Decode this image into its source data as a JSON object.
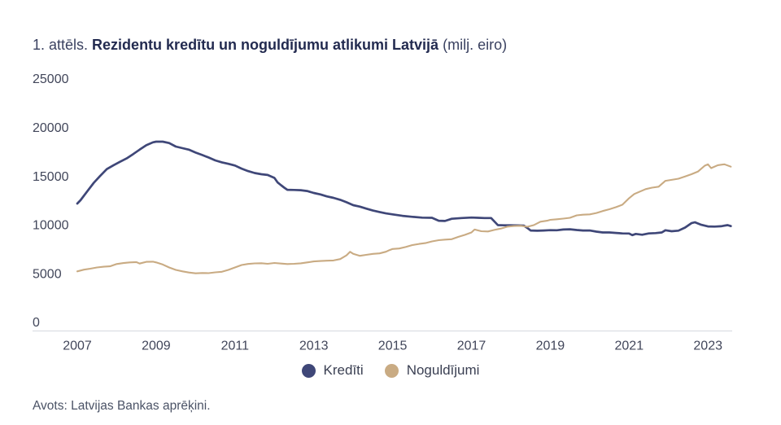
{
  "title": {
    "prefix": "1. attēls. ",
    "main": "Rezidentu kredītu un noguldījumu atlikumi Latvijā",
    "unit": " (milj. eiro)"
  },
  "footer": {
    "source": "Avots: Latvijas Bankas aprēķini."
  },
  "colors": {
    "credits_line": "#3f4778",
    "deposits_line": "#c9ab83",
    "axis_line": "#dcdee3",
    "axis_label_text": "#41465a",
    "title_regular": "#3a4160",
    "title_bold": "#232b50",
    "legend_text": "#3a3f52",
    "footer_text": "#4b5366"
  },
  "chart_data": {
    "type": "line",
    "title": "Rezidentu kredītu un noguldījumu atlikumi Latvijā (milj. eiro)",
    "xlabel": "",
    "ylabel": "",
    "x_ticks": [
      2007,
      2009,
      2011,
      2013,
      2015,
      2017,
      2019,
      2021,
      2023
    ],
    "y_ticks": [
      0,
      5000,
      10000,
      15000,
      20000,
      25000
    ],
    "xlim": [
      2006.9,
      2023.75
    ],
    "ylim": [
      0,
      25000
    ],
    "grid": false,
    "legend_position": "bottom",
    "series": [
      {
        "name": "Kredīti",
        "color": "#3f4778",
        "points": [
          [
            2007.0,
            12270
          ],
          [
            2007.08,
            12600
          ],
          [
            2007.25,
            13500
          ],
          [
            2007.42,
            14400
          ],
          [
            2007.58,
            15100
          ],
          [
            2007.75,
            15800
          ],
          [
            2007.92,
            16200
          ],
          [
            2008.08,
            16550
          ],
          [
            2008.25,
            16900
          ],
          [
            2008.42,
            17350
          ],
          [
            2008.58,
            17800
          ],
          [
            2008.75,
            18250
          ],
          [
            2008.92,
            18550
          ],
          [
            2009.0,
            18620
          ],
          [
            2009.17,
            18620
          ],
          [
            2009.33,
            18480
          ],
          [
            2009.5,
            18120
          ],
          [
            2009.67,
            17950
          ],
          [
            2009.83,
            17800
          ],
          [
            2010.0,
            17500
          ],
          [
            2010.17,
            17250
          ],
          [
            2010.33,
            17000
          ],
          [
            2010.5,
            16700
          ],
          [
            2010.67,
            16500
          ],
          [
            2010.83,
            16350
          ],
          [
            2011.0,
            16170
          ],
          [
            2011.17,
            15850
          ],
          [
            2011.33,
            15600
          ],
          [
            2011.5,
            15400
          ],
          [
            2011.67,
            15280
          ],
          [
            2011.83,
            15200
          ],
          [
            2012.0,
            14900
          ],
          [
            2012.08,
            14450
          ],
          [
            2012.17,
            14150
          ],
          [
            2012.25,
            13900
          ],
          [
            2012.33,
            13680
          ],
          [
            2012.5,
            13660
          ],
          [
            2012.67,
            13640
          ],
          [
            2012.83,
            13550
          ],
          [
            2013.0,
            13350
          ],
          [
            2013.17,
            13200
          ],
          [
            2013.33,
            13000
          ],
          [
            2013.5,
            12850
          ],
          [
            2013.67,
            12650
          ],
          [
            2013.83,
            12400
          ],
          [
            2014.0,
            12100
          ],
          [
            2014.17,
            11950
          ],
          [
            2014.33,
            11750
          ],
          [
            2014.5,
            11550
          ],
          [
            2014.67,
            11400
          ],
          [
            2014.83,
            11250
          ],
          [
            2015.0,
            11150
          ],
          [
            2015.25,
            11000
          ],
          [
            2015.5,
            10900
          ],
          [
            2015.75,
            10820
          ],
          [
            2016.0,
            10800
          ],
          [
            2016.17,
            10500
          ],
          [
            2016.33,
            10480
          ],
          [
            2016.5,
            10700
          ],
          [
            2016.75,
            10780
          ],
          [
            2017.0,
            10830
          ],
          [
            2017.17,
            10800
          ],
          [
            2017.33,
            10780
          ],
          [
            2017.5,
            10780
          ],
          [
            2017.67,
            10050
          ],
          [
            2017.83,
            10030
          ],
          [
            2018.0,
            10030
          ],
          [
            2018.17,
            10020
          ],
          [
            2018.33,
            10000
          ],
          [
            2018.42,
            9750
          ],
          [
            2018.5,
            9500
          ],
          [
            2018.67,
            9470
          ],
          [
            2018.83,
            9500
          ],
          [
            2019.0,
            9530
          ],
          [
            2019.17,
            9520
          ],
          [
            2019.33,
            9600
          ],
          [
            2019.5,
            9620
          ],
          [
            2019.67,
            9550
          ],
          [
            2019.83,
            9500
          ],
          [
            2020.0,
            9500
          ],
          [
            2020.17,
            9380
          ],
          [
            2020.33,
            9300
          ],
          [
            2020.5,
            9300
          ],
          [
            2020.67,
            9250
          ],
          [
            2020.83,
            9200
          ],
          [
            2021.0,
            9190
          ],
          [
            2021.08,
            9020
          ],
          [
            2021.17,
            9150
          ],
          [
            2021.33,
            9060
          ],
          [
            2021.5,
            9200
          ],
          [
            2021.67,
            9230
          ],
          [
            2021.83,
            9300
          ],
          [
            2021.92,
            9520
          ],
          [
            2022.08,
            9420
          ],
          [
            2022.25,
            9480
          ],
          [
            2022.42,
            9800
          ],
          [
            2022.58,
            10250
          ],
          [
            2022.67,
            10340
          ],
          [
            2022.83,
            10080
          ],
          [
            2023.0,
            9920
          ],
          [
            2023.17,
            9900
          ],
          [
            2023.33,
            9930
          ],
          [
            2023.5,
            10050
          ],
          [
            2023.58,
            9950
          ]
        ]
      },
      {
        "name": "Noguldījumi",
        "color": "#c9ab83",
        "points": [
          [
            2007.0,
            5300
          ],
          [
            2007.17,
            5480
          ],
          [
            2007.33,
            5580
          ],
          [
            2007.5,
            5700
          ],
          [
            2007.67,
            5780
          ],
          [
            2007.83,
            5820
          ],
          [
            2008.0,
            6050
          ],
          [
            2008.17,
            6150
          ],
          [
            2008.33,
            6220
          ],
          [
            2008.5,
            6250
          ],
          [
            2008.58,
            6100
          ],
          [
            2008.75,
            6280
          ],
          [
            2008.92,
            6300
          ],
          [
            2009.0,
            6220
          ],
          [
            2009.17,
            6000
          ],
          [
            2009.33,
            5700
          ],
          [
            2009.5,
            5450
          ],
          [
            2009.67,
            5300
          ],
          [
            2009.83,
            5180
          ],
          [
            2010.0,
            5100
          ],
          [
            2010.17,
            5130
          ],
          [
            2010.33,
            5120
          ],
          [
            2010.5,
            5200
          ],
          [
            2010.67,
            5260
          ],
          [
            2010.83,
            5450
          ],
          [
            2011.0,
            5700
          ],
          [
            2011.17,
            5950
          ],
          [
            2011.33,
            6060
          ],
          [
            2011.5,
            6120
          ],
          [
            2011.67,
            6140
          ],
          [
            2011.83,
            6080
          ],
          [
            2012.0,
            6160
          ],
          [
            2012.17,
            6100
          ],
          [
            2012.33,
            6050
          ],
          [
            2012.5,
            6080
          ],
          [
            2012.67,
            6130
          ],
          [
            2012.83,
            6220
          ],
          [
            2013.0,
            6320
          ],
          [
            2013.17,
            6360
          ],
          [
            2013.33,
            6400
          ],
          [
            2013.5,
            6420
          ],
          [
            2013.67,
            6560
          ],
          [
            2013.83,
            6950
          ],
          [
            2013.92,
            7320
          ],
          [
            2014.0,
            7100
          ],
          [
            2014.17,
            6900
          ],
          [
            2014.33,
            7000
          ],
          [
            2014.5,
            7100
          ],
          [
            2014.67,
            7150
          ],
          [
            2014.83,
            7320
          ],
          [
            2014.92,
            7480
          ],
          [
            2015.0,
            7600
          ],
          [
            2015.17,
            7650
          ],
          [
            2015.33,
            7800
          ],
          [
            2015.5,
            8000
          ],
          [
            2015.67,
            8120
          ],
          [
            2015.83,
            8200
          ],
          [
            2016.0,
            8380
          ],
          [
            2016.17,
            8500
          ],
          [
            2016.33,
            8560
          ],
          [
            2016.5,
            8600
          ],
          [
            2016.67,
            8850
          ],
          [
            2016.83,
            9050
          ],
          [
            2017.0,
            9300
          ],
          [
            2017.08,
            9600
          ],
          [
            2017.25,
            9420
          ],
          [
            2017.42,
            9400
          ],
          [
            2017.58,
            9560
          ],
          [
            2017.75,
            9700
          ],
          [
            2017.92,
            9900
          ],
          [
            2018.08,
            9960
          ],
          [
            2018.25,
            9980
          ],
          [
            2018.42,
            9880
          ],
          [
            2018.58,
            10050
          ],
          [
            2018.75,
            10400
          ],
          [
            2018.92,
            10500
          ],
          [
            2019.0,
            10590
          ],
          [
            2019.17,
            10650
          ],
          [
            2019.33,
            10720
          ],
          [
            2019.5,
            10800
          ],
          [
            2019.67,
            11050
          ],
          [
            2019.83,
            11120
          ],
          [
            2020.0,
            11150
          ],
          [
            2020.17,
            11300
          ],
          [
            2020.33,
            11500
          ],
          [
            2020.5,
            11680
          ],
          [
            2020.67,
            11900
          ],
          [
            2020.83,
            12150
          ],
          [
            2021.0,
            12820
          ],
          [
            2021.13,
            13240
          ],
          [
            2021.25,
            13450
          ],
          [
            2021.42,
            13750
          ],
          [
            2021.58,
            13900
          ],
          [
            2021.75,
            14000
          ],
          [
            2021.92,
            14600
          ],
          [
            2022.08,
            14700
          ],
          [
            2022.25,
            14820
          ],
          [
            2022.42,
            15050
          ],
          [
            2022.58,
            15280
          ],
          [
            2022.75,
            15560
          ],
          [
            2022.92,
            16150
          ],
          [
            2023.0,
            16300
          ],
          [
            2023.08,
            15900
          ],
          [
            2023.25,
            16200
          ],
          [
            2023.42,
            16300
          ],
          [
            2023.58,
            16050
          ]
        ]
      }
    ]
  }
}
